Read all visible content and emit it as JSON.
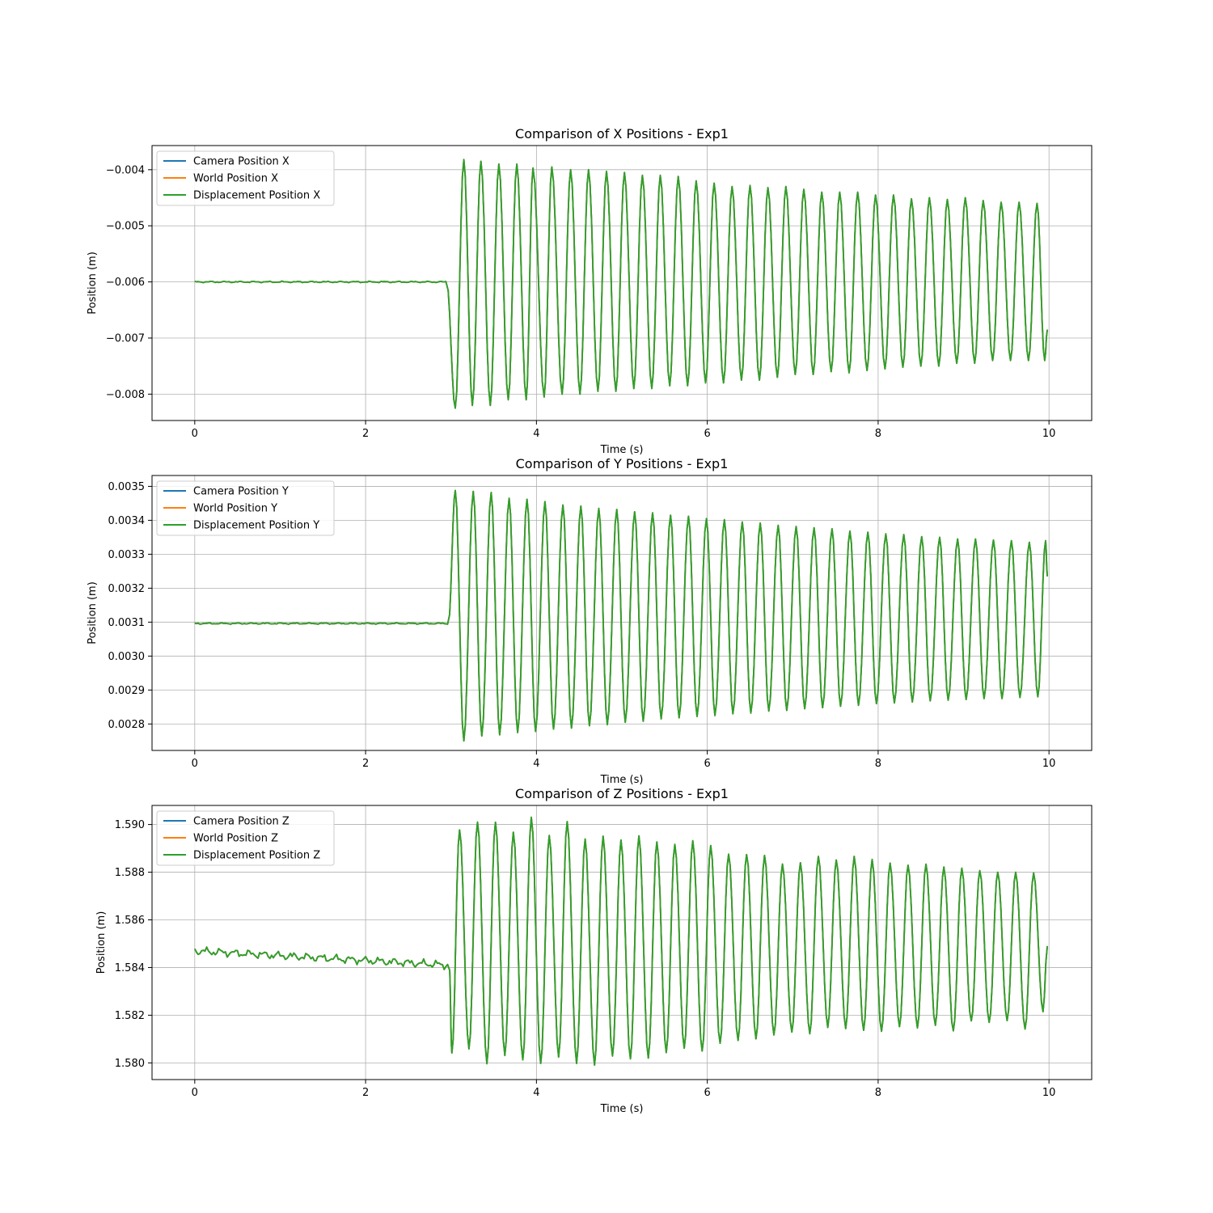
{
  "chart_data": [
    {
      "type": "line",
      "title": "Comparison of X Positions - Exp1",
      "xlabel": "Time (s)",
      "ylabel": "Position (m)",
      "xlim": [
        -0.5,
        10.5
      ],
      "ylim": [
        -0.00847,
        -0.00357
      ],
      "xticks": [
        0,
        2,
        4,
        6,
        8,
        10
      ],
      "xtick_labels": [
        "0",
        "2",
        "4",
        "6",
        "8",
        "10"
      ],
      "yticks": [
        -0.004,
        -0.005,
        -0.006,
        -0.007,
        -0.008
      ],
      "ytick_labels": [
        "−0.004",
        "−0.005",
        "−0.006",
        "−0.007",
        "−0.008"
      ],
      "grid": true,
      "legend_position": "upper-left",
      "series": [
        {
          "name": "Camera Position X",
          "color": "#1f77b4"
        },
        {
          "name": "World Position X",
          "color": "#ff7f0e"
        },
        {
          "name": "Displacement Position X",
          "color": "#2ca02c"
        }
      ],
      "signal": {
        "time_range": [
          0,
          9.98
        ],
        "onset": 2.95,
        "baseline": -0.006,
        "period": 0.21,
        "maxima": [
          [
            3.15,
            -0.00382
          ],
          [
            3.35,
            -0.00385
          ],
          [
            3.56,
            -0.0039
          ],
          [
            3.77,
            -0.0039
          ],
          [
            3.96,
            -0.00397
          ],
          [
            4.18,
            -0.00395
          ],
          [
            4.4,
            -0.004
          ],
          [
            4.61,
            -0.004
          ],
          [
            4.82,
            -0.00403
          ],
          [
            5.03,
            -0.00405
          ],
          [
            5.24,
            -0.0041
          ],
          [
            5.45,
            -0.0041
          ],
          [
            5.66,
            -0.00412
          ],
          [
            5.87,
            -0.0042
          ],
          [
            6.08,
            -0.00424
          ],
          [
            6.29,
            -0.0043
          ],
          [
            6.5,
            -0.00428
          ],
          [
            6.71,
            -0.00432
          ],
          [
            6.92,
            -0.0043
          ],
          [
            7.13,
            -0.00435
          ],
          [
            7.34,
            -0.0044
          ],
          [
            7.55,
            -0.0044
          ],
          [
            7.76,
            -0.0044
          ],
          [
            7.97,
            -0.00445
          ],
          [
            8.18,
            -0.00445
          ],
          [
            8.39,
            -0.00452
          ],
          [
            8.6,
            -0.0045
          ],
          [
            8.81,
            -0.00453
          ],
          [
            9.02,
            -0.0045
          ],
          [
            9.23,
            -0.00455
          ],
          [
            9.44,
            -0.00458
          ],
          [
            9.65,
            -0.00458
          ],
          [
            9.86,
            -0.0046
          ]
        ],
        "minima": [
          [
            3.05,
            -0.00825
          ],
          [
            3.25,
            -0.0082
          ],
          [
            3.46,
            -0.0082
          ],
          [
            3.67,
            -0.0081
          ],
          [
            3.88,
            -0.0081
          ],
          [
            4.09,
            -0.00805
          ],
          [
            4.3,
            -0.008
          ],
          [
            4.51,
            -0.008
          ],
          [
            4.72,
            -0.00795
          ],
          [
            4.93,
            -0.00795
          ],
          [
            5.14,
            -0.0079
          ],
          [
            5.35,
            -0.0079
          ],
          [
            5.56,
            -0.00785
          ],
          [
            5.77,
            -0.00785
          ],
          [
            5.98,
            -0.0078
          ],
          [
            6.19,
            -0.0078
          ],
          [
            6.4,
            -0.00775
          ],
          [
            6.61,
            -0.00775
          ],
          [
            6.82,
            -0.0077
          ],
          [
            7.03,
            -0.00765
          ],
          [
            7.24,
            -0.00765
          ],
          [
            7.45,
            -0.0076
          ],
          [
            7.66,
            -0.00762
          ],
          [
            7.87,
            -0.00758
          ],
          [
            8.08,
            -0.00755
          ],
          [
            8.29,
            -0.00752
          ],
          [
            8.5,
            -0.0075
          ],
          [
            8.71,
            -0.0075
          ],
          [
            8.92,
            -0.00745
          ],
          [
            9.13,
            -0.00745
          ],
          [
            9.34,
            -0.0074
          ],
          [
            9.55,
            -0.0074
          ],
          [
            9.76,
            -0.0074
          ],
          [
            9.95,
            -0.0074
          ]
        ],
        "end_value": -0.00685
      }
    },
    {
      "type": "line",
      "title": "Comparison of Y Positions - Exp1",
      "xlabel": "Time (s)",
      "ylabel": "Position (m)",
      "xlim": [
        -0.5,
        10.5
      ],
      "ylim": [
        0.002722,
        0.003532
      ],
      "xticks": [
        0,
        2,
        4,
        6,
        8,
        10
      ],
      "xtick_labels": [
        "0",
        "2",
        "4",
        "6",
        "8",
        "10"
      ],
      "yticks": [
        0.0035,
        0.0034,
        0.0033,
        0.0032,
        0.0031,
        0.003,
        0.0029,
        0.0028
      ],
      "ytick_labels": [
        "0.0035",
        "0.0034",
        "0.0033",
        "0.0032",
        "0.0031",
        "0.0030",
        "0.0029",
        "0.0028"
      ],
      "grid": true,
      "legend_position": "upper-left",
      "series": [
        {
          "name": "Camera Position Y",
          "color": "#1f77b4"
        },
        {
          "name": "World Position Y",
          "color": "#ff7f0e"
        },
        {
          "name": "Displacement Position Y",
          "color": "#2ca02c"
        }
      ],
      "signal": {
        "time_range": [
          0,
          9.98
        ],
        "onset": 2.97,
        "baseline": 0.003096,
        "period": 0.21,
        "maxima": [
          [
            3.05,
            0.003488
          ],
          [
            3.26,
            0.003485
          ],
          [
            3.47,
            0.003482
          ],
          [
            3.68,
            0.003465
          ],
          [
            3.89,
            0.003462
          ],
          [
            4.1,
            0.003455
          ],
          [
            4.31,
            0.003445
          ],
          [
            4.52,
            0.003442
          ],
          [
            4.73,
            0.003435
          ],
          [
            4.94,
            0.003432
          ],
          [
            5.15,
            0.003425
          ],
          [
            5.36,
            0.003422
          ],
          [
            5.57,
            0.003415
          ],
          [
            5.78,
            0.003412
          ],
          [
            5.99,
            0.003405
          ],
          [
            6.2,
            0.003402
          ],
          [
            6.41,
            0.003395
          ],
          [
            6.62,
            0.003392
          ],
          [
            6.83,
            0.003385
          ],
          [
            7.04,
            0.003382
          ],
          [
            7.25,
            0.003378
          ],
          [
            7.46,
            0.003375
          ],
          [
            7.67,
            0.003368
          ],
          [
            7.88,
            0.003365
          ],
          [
            8.09,
            0.00336
          ],
          [
            8.3,
            0.003358
          ],
          [
            8.51,
            0.003352
          ],
          [
            8.72,
            0.00335
          ],
          [
            8.93,
            0.003345
          ],
          [
            9.14,
            0.003345
          ],
          [
            9.35,
            0.003342
          ],
          [
            9.56,
            0.00334
          ],
          [
            9.77,
            0.003335
          ],
          [
            9.96,
            0.00334
          ]
        ],
        "minima": [
          [
            3.15,
            0.00275
          ],
          [
            3.36,
            0.002765
          ],
          [
            3.57,
            0.002768
          ],
          [
            3.78,
            0.002775
          ],
          [
            3.99,
            0.002778
          ],
          [
            4.2,
            0.002785
          ],
          [
            4.41,
            0.002788
          ],
          [
            4.62,
            0.002795
          ],
          [
            4.83,
            0.002798
          ],
          [
            5.04,
            0.002805
          ],
          [
            5.25,
            0.002808
          ],
          [
            5.46,
            0.002815
          ],
          [
            5.67,
            0.002818
          ],
          [
            5.88,
            0.002822
          ],
          [
            6.09,
            0.002825
          ],
          [
            6.3,
            0.00283
          ],
          [
            6.51,
            0.002832
          ],
          [
            6.72,
            0.002838
          ],
          [
            6.93,
            0.00284
          ],
          [
            7.14,
            0.002845
          ],
          [
            7.35,
            0.002848
          ],
          [
            7.56,
            0.002852
          ],
          [
            7.77,
            0.002855
          ],
          [
            7.98,
            0.00286
          ],
          [
            8.19,
            0.002862
          ],
          [
            8.4,
            0.002865
          ],
          [
            8.61,
            0.002868
          ],
          [
            8.82,
            0.00287
          ],
          [
            9.03,
            0.002872
          ],
          [
            9.24,
            0.002875
          ],
          [
            9.45,
            0.002875
          ],
          [
            9.66,
            0.002878
          ],
          [
            9.87,
            0.00288
          ]
        ],
        "end_value": 0.003235
      }
    },
    {
      "type": "line",
      "title": "Comparison of Z Positions - Exp1",
      "xlabel": "Time (s)",
      "ylabel": "Position (m)",
      "xlim": [
        -0.5,
        10.5
      ],
      "ylim": [
        1.5793,
        1.5908
      ],
      "xticks": [
        0,
        2,
        4,
        6,
        8,
        10
      ],
      "xtick_labels": [
        "0",
        "2",
        "4",
        "6",
        "8",
        "10"
      ],
      "yticks": [
        1.59,
        1.588,
        1.586,
        1.584,
        1.582,
        1.58
      ],
      "ytick_labels": [
        "1.590",
        "1.588",
        "1.586",
        "1.584",
        "1.582",
        "1.580"
      ],
      "grid": true,
      "legend_position": "upper-left",
      "series": [
        {
          "name": "Camera Position Z",
          "color": "#1f77b4"
        },
        {
          "name": "World Position Z",
          "color": "#ff7f0e"
        },
        {
          "name": "Displacement Position Z",
          "color": "#2ca02c"
        }
      ],
      "signal": {
        "time_range": [
          0,
          9.98
        ],
        "onset": 2.98,
        "baseline_start": 1.5847,
        "baseline_end": 1.5841,
        "period": 0.21,
        "maxima": [
          [
            3.1,
            1.5898
          ],
          [
            3.31,
            1.5901
          ],
          [
            3.52,
            1.5901
          ],
          [
            3.73,
            1.5897
          ],
          [
            3.94,
            1.5903
          ],
          [
            4.15,
            1.5895
          ],
          [
            4.36,
            1.5901
          ],
          [
            4.57,
            1.5894
          ],
          [
            4.78,
            1.5895
          ],
          [
            4.99,
            1.5893
          ],
          [
            5.2,
            1.5895
          ],
          [
            5.41,
            1.5893
          ],
          [
            5.62,
            1.5892
          ],
          [
            5.83,
            1.5893
          ],
          [
            6.04,
            1.5891
          ],
          [
            6.25,
            1.5888
          ],
          [
            6.46,
            1.5888
          ],
          [
            6.67,
            1.5887
          ],
          [
            6.88,
            1.5883
          ],
          [
            7.09,
            1.5884
          ],
          [
            7.3,
            1.5887
          ],
          [
            7.51,
            1.5885
          ],
          [
            7.72,
            1.5886
          ],
          [
            7.93,
            1.5885
          ],
          [
            8.14,
            1.5884
          ],
          [
            8.35,
            1.5883
          ],
          [
            8.56,
            1.5883
          ],
          [
            8.77,
            1.5882
          ],
          [
            8.98,
            1.5882
          ],
          [
            9.19,
            1.5881
          ],
          [
            9.4,
            1.588
          ],
          [
            9.61,
            1.588
          ],
          [
            9.82,
            1.588
          ]
        ],
        "minima": [
          [
            3.01,
            1.5804
          ],
          [
            3.21,
            1.5806
          ],
          [
            3.42,
            1.58
          ],
          [
            3.63,
            1.5803
          ],
          [
            3.84,
            1.5801
          ],
          [
            4.05,
            1.58
          ],
          [
            4.26,
            1.5803
          ],
          [
            4.47,
            1.58
          ],
          [
            4.68,
            1.5799
          ],
          [
            4.89,
            1.5803
          ],
          [
            5.1,
            1.5802
          ],
          [
            5.31,
            1.5802
          ],
          [
            5.52,
            1.5804
          ],
          [
            5.73,
            1.5806
          ],
          [
            5.94,
            1.5805
          ],
          [
            6.15,
            1.5808
          ],
          [
            6.36,
            1.5809
          ],
          [
            6.57,
            1.581
          ],
          [
            6.78,
            1.5812
          ],
          [
            6.99,
            1.5813
          ],
          [
            7.2,
            1.5812
          ],
          [
            7.41,
            1.5815
          ],
          [
            7.62,
            1.5815
          ],
          [
            7.83,
            1.5814
          ],
          [
            8.04,
            1.5813
          ],
          [
            8.25,
            1.5815
          ],
          [
            8.46,
            1.5815
          ],
          [
            8.67,
            1.5816
          ],
          [
            8.88,
            1.5813
          ],
          [
            9.09,
            1.5817
          ],
          [
            9.3,
            1.5817
          ],
          [
            9.51,
            1.5818
          ],
          [
            9.72,
            1.5814
          ],
          [
            9.93,
            1.5821
          ]
        ],
        "end_value": 1.5849
      }
    }
  ]
}
